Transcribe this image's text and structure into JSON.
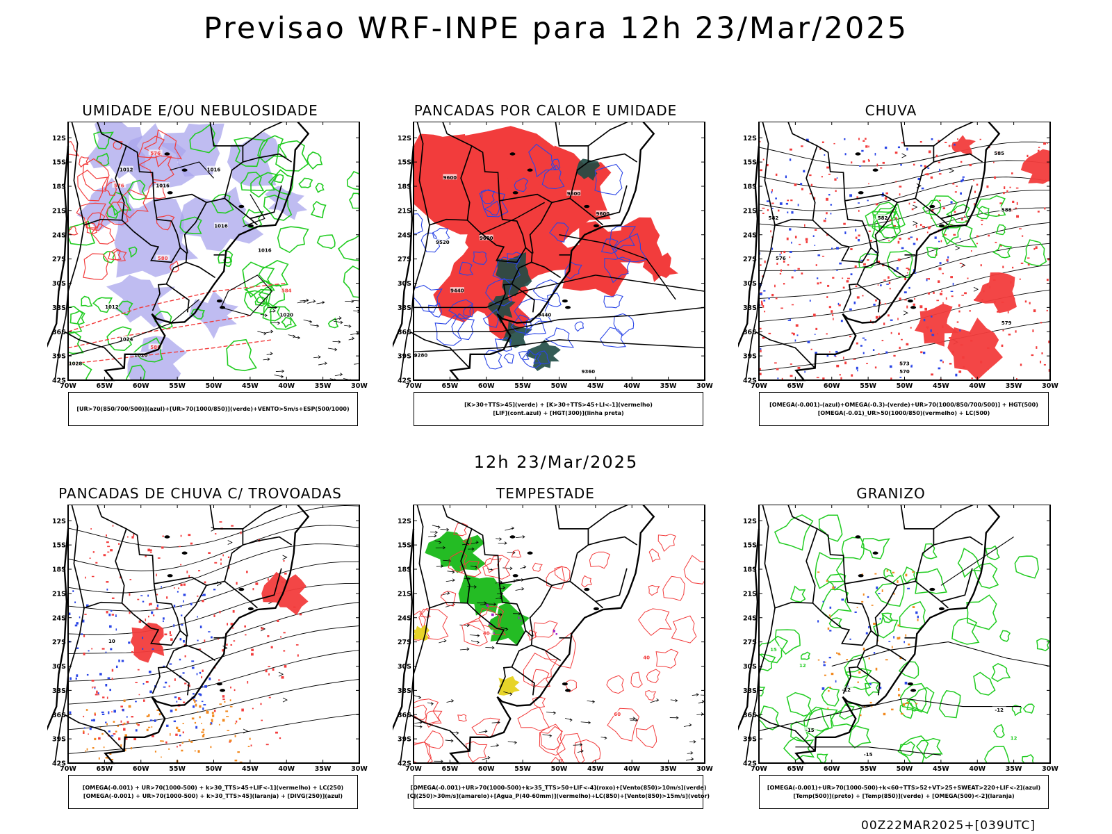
{
  "header": {
    "title": "Previsao WRF-INPE  para 12h 23/Mar/2025"
  },
  "middle_label": "12h 23/Mar/2025",
  "footer": {
    "stamp": "00Z22MAR2025+[039UTC]"
  },
  "axes": {
    "lat_ticks": [
      "12S",
      "15S",
      "18S",
      "21S",
      "24S",
      "27S",
      "30S",
      "33S",
      "36S",
      "39S",
      "42S"
    ],
    "lon_ticks": [
      "70W",
      "65W",
      "60W",
      "55W",
      "50W",
      "45W",
      "40W",
      "35W",
      "30W"
    ]
  },
  "colors": {
    "humidity_mid": "#a9a6ec",
    "green": "#21cc21",
    "red": "#f23c3c",
    "blue": "#2a45e6",
    "dark_green": "#1e4a44",
    "orange": "#f2891e",
    "yellow": "#e6d21e",
    "purple": "#a020c8",
    "black": "#000000"
  },
  "panels": [
    {
      "id": "umidade",
      "title": "UMIDADE E/OU NEBULOSIDADE",
      "legend": [
        "[UR>70(850/700/500)](azul)+[UR>70(1000/850)](verde)+VENTO>5m/s+ESP(500/1000)"
      ],
      "contour_labels": [
        "1012",
        "1012",
        "1016",
        "1016",
        "1016",
        "1016",
        "1020",
        "1020",
        "1024",
        "1028",
        "576",
        "576",
        "580",
        "584",
        "588"
      ]
    },
    {
      "id": "pancadas-calor",
      "title": "PANCADAS POR CALOR E UMIDADE",
      "legend": [
        "[K>30+TTS>45](verde) + [K>30+TTS>45+LI<-1](vermelho)",
        "[LIF](cont.azul) + [HGT(300)](linha preta)"
      ],
      "contour_labels": [
        "9600",
        "9600",
        "9600",
        "9600",
        "9520",
        "9440",
        "9440",
        "9280",
        "9360"
      ]
    },
    {
      "id": "chuva",
      "title": "CHUVA",
      "legend": [
        "[OMEGA(-0.001)-(azul)+OMEGA(-0.3)-(verde)+UR>70(1000/850/700/500)] + HGT(500)",
        "[OMEGA(-0.01)_UR>50(1000/850)(vermelho) + LC(500)"
      ],
      "contour_labels": [
        "585",
        "588",
        "582",
        "576",
        "579",
        "573",
        "570",
        "582"
      ]
    },
    {
      "id": "trovoadas",
      "title": "PANCADAS DE CHUVA C/ TROVOADAS",
      "legend": [
        "[OMEGA(-0.001) + UR>70(1000-500) + k>30_TTS>45+LIF<-1](vermelho) + LC(250)",
        "[OMEGA(-0.001) + UR>70(1000-500) + k>30_TTS>45](laranja) + [DIVG(250)](azul)"
      ],
      "contour_labels": [
        "10"
      ]
    },
    {
      "id": "tempestade",
      "title": "TEMPESTADE",
      "legend": [
        "[OMEGA(-0.001)+UR>70(1000-500)+k>35_TTS>50+LIF<-4](roxo)+[Vento(850)>10m/s](verde)",
        "[CJ(250)>30m/s](amarelo)+[Agua_P(40-60mm)](vermelho)+LC(850)+[Vento(850)>15m/s](vetor)"
      ],
      "contour_labels": [
        "40",
        "60",
        "40"
      ]
    },
    {
      "id": "granizo",
      "title": "GRANIZO",
      "legend": [
        "[OMEGA(-0.001)+UR>70(1000-500)+k<60+TTS>52+VT>25+SWEAT>220+LIF<-2](azul)",
        "[Temp(500)](preto) + [Temp(850)](verde) + [OMEGA(500)<-2](laranja)"
      ],
      "contour_labels": [
        "-12",
        "-12",
        "-15",
        "-15",
        "12",
        "12",
        "15"
      ]
    }
  ]
}
